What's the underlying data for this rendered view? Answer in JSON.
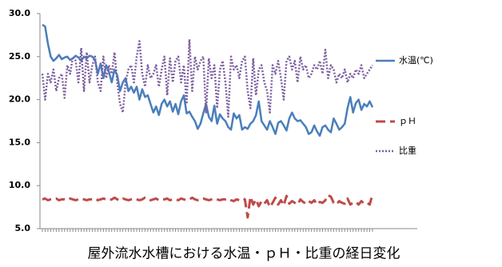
{
  "chart_data": {
    "type": "line",
    "title": "屋外流水水槽における水温・ｐＨ・比重の経日変化",
    "categories": [
      null,
      null,
      null,
      null,
      null,
      null,
      null,
      null,
      null,
      null,
      null,
      null,
      null,
      null,
      null,
      null,
      null,
      null,
      null,
      null,
      null,
      null,
      null,
      null,
      null,
      null,
      null,
      null,
      null,
      null,
      null,
      null,
      null,
      null,
      null,
      null,
      null,
      null,
      null,
      null,
      null,
      null,
      null,
      null,
      null,
      null,
      null,
      null,
      null,
      null,
      null,
      null,
      null,
      null,
      null,
      null,
      null,
      null,
      null,
      null,
      null,
      null,
      null,
      null,
      null,
      null,
      null,
      null,
      null,
      null,
      null,
      null,
      null,
      null,
      null,
      null,
      null,
      null,
      null,
      null,
      null,
      null,
      null,
      null,
      null,
      null,
      null,
      null,
      null,
      null,
      null,
      null,
      null,
      null,
      null,
      null,
      null,
      null,
      null,
      null,
      null,
      null,
      null,
      null,
      null,
      null,
      null,
      null,
      null,
      null,
      null,
      null,
      null,
      null,
      null,
      null,
      null,
      null,
      null,
      null
    ],
    "ylim": [
      5,
      30
    ],
    "yticks": [
      {
        "value": 5,
        "label": "5.0"
      },
      {
        "value": 10,
        "label": "10.0"
      },
      {
        "value": 15,
        "label": "15.0"
      },
      {
        "value": 20,
        "label": "20.0"
      },
      {
        "value": 25,
        "label": "25.0"
      },
      {
        "value": 30,
        "label": "30.0"
      }
    ],
    "grid": false,
    "series": [
      {
        "name": "水温(℃)",
        "color": "#4a7ebb",
        "dash": "solid",
        "values": [
          28.7,
          28.5,
          26.5,
          25.0,
          24.5,
          24.8,
          25.2,
          24.7,
          24.9,
          25.0,
          24.6,
          24.8,
          25.1,
          24.9,
          24.5,
          25.0,
          24.8,
          25.1,
          25.0,
          24.6,
          23.0,
          24.2,
          22.5,
          24.0,
          23.2,
          22.0,
          23.5,
          22.8,
          21.0,
          22.0,
          22.5,
          21.0,
          21.5,
          20.8,
          21.5,
          20.0,
          21.2,
          20.3,
          20.5,
          19.5,
          18.5,
          19.2,
          18.2,
          19.5,
          20.0,
          19.2,
          19.8,
          18.6,
          19.5,
          18.3,
          19.8,
          20.5,
          18.4,
          18.6,
          18.0,
          17.5,
          16.6,
          17.2,
          18.4,
          19.5,
          18.0,
          17.5,
          19.3,
          17.2,
          18.3,
          17.8,
          17.5,
          16.8,
          16.5,
          18.4,
          17.8,
          18.2,
          16.5,
          16.8,
          16.6,
          17.2,
          17.5,
          18.2,
          19.8,
          17.5,
          17.0,
          16.5,
          17.5,
          16.8,
          16.0,
          17.3,
          17.5,
          17.0,
          16.4,
          17.8,
          18.5,
          17.8,
          17.5,
          17.6,
          17.2,
          16.8,
          16.0,
          16.2,
          17.0,
          16.3,
          15.8,
          16.8,
          17.0,
          16.5,
          16.2,
          17.8,
          17.2,
          16.5,
          16.8,
          17.2,
          19.0,
          20.3,
          18.5,
          19.6,
          20.0,
          18.8,
          19.5,
          19.2,
          19.8,
          19.1
        ]
      },
      {
        "name": "ｐＨ",
        "color": "#be4b48",
        "dash": "dashed",
        "values": [
          8.4,
          8.5,
          8.3,
          8.4,
          8.4,
          8.5,
          8.3,
          8.4,
          8.4,
          8.3,
          8.5,
          8.4,
          8.3,
          8.4,
          8.5,
          8.4,
          8.3,
          8.4,
          8.4,
          8.5,
          8.3,
          8.4,
          8.5,
          8.4,
          8.3,
          8.4,
          8.6,
          8.4,
          8.3,
          8.5,
          8.4,
          8.3,
          8.4,
          8.5,
          8.4,
          8.3,
          8.4,
          8.6,
          8.4,
          8.3,
          8.4,
          8.5,
          8.3,
          8.4,
          8.4,
          8.5,
          8.3,
          8.4,
          8.4,
          8.3,
          8.5,
          8.4,
          8.3,
          8.4,
          8.6,
          8.4,
          8.3,
          8.4,
          8.5,
          8.4,
          8.3,
          8.4,
          8.5,
          8.4,
          8.3,
          8.4,
          8.4,
          8.5,
          8.3,
          8.2,
          8.4,
          8.3,
          8.5,
          8.4,
          6.3,
          8.7,
          7.8,
          8.4,
          7.6,
          8.2,
          7.9,
          8.3,
          7.5,
          8.0,
          8.6,
          7.8,
          8.3,
          7.7,
          8.8,
          7.9,
          8.2,
          8.0,
          7.8,
          8.4,
          8.1,
          7.9,
          8.2,
          8.0,
          8.3,
          7.8,
          8.1,
          8.0,
          8.3,
          8.9,
          8.7,
          8.0,
          7.8,
          8.2,
          8.0,
          7.9,
          8.5,
          7.8,
          8.0,
          8.1,
          7.8,
          8.2,
          7.9,
          8.0,
          7.8,
          9.0
        ]
      },
      {
        "name": "比重",
        "color": "#7d5fa0",
        "dash": "dotted",
        "values": [
          23.0,
          20.0,
          23.0,
          22.0,
          23.5,
          21.0,
          22.5,
          23.0,
          20.2,
          24.0,
          23.0,
          25.0,
          24.5,
          22.0,
          26.0,
          21.0,
          25.5,
          22.0,
          24.0,
          25.0,
          22.0,
          21.0,
          25.0,
          22.5,
          24.0,
          23.0,
          25.5,
          22.0,
          19.5,
          18.5,
          22.0,
          23.5,
          24.0,
          22.0,
          25.0,
          26.8,
          23.0,
          21.5,
          24.0,
          22.5,
          23.0,
          24.0,
          21.5,
          23.5,
          25.0,
          20.5,
          24.8,
          22.0,
          24.5,
          25.0,
          22.0,
          24.0,
          19.5,
          27.0,
          21.0,
          25.0,
          23.5,
          24.5,
          25.0,
          18.5,
          24.8,
          22.5,
          24.0,
          19.0,
          23.5,
          24.5,
          22.0,
          18.0,
          25.0,
          23.5,
          24.0,
          22.5,
          24.5,
          25.0,
          21.0,
          19.0,
          24.8,
          20.5,
          23.5,
          24.0,
          22.0,
          21.0,
          18.5,
          24.0,
          23.0,
          24.5,
          22.5,
          20.0,
          24.5,
          25.0,
          23.5,
          24.5,
          22.0,
          25.0,
          23.5,
          24.0,
          22.5,
          23.0,
          24.0,
          23.5,
          24.5,
          23.0,
          25.8,
          22.5,
          24.0,
          23.5,
          22.0,
          23.0,
          22.5,
          23.5,
          22.0,
          23.0,
          22.5,
          23.5,
          23.0,
          24.0,
          22.5,
          23.0,
          23.5,
          24.0
        ]
      }
    ]
  }
}
